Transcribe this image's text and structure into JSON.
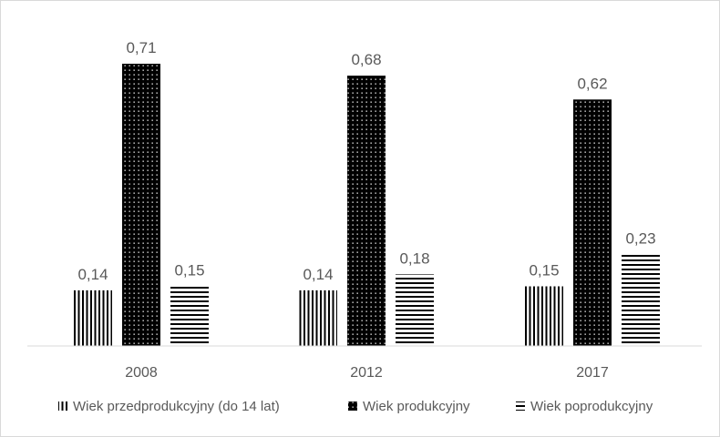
{
  "chart_data": {
    "type": "bar",
    "title": "",
    "xlabel": "",
    "ylabel": "",
    "categories": [
      "2008",
      "2012",
      "2017"
    ],
    "series": [
      {
        "name": "Wiek przedprodukcyjny (do 14 lat)",
        "pattern": "vertical-lines",
        "values": [
          0.14,
          0.14,
          0.15
        ],
        "labels": [
          "0,14",
          "0,14",
          "0,15"
        ]
      },
      {
        "name": "Wiek produkcyjny",
        "pattern": "dotted-black",
        "values": [
          0.71,
          0.68,
          0.62
        ],
        "labels": [
          "0,71",
          "0,68",
          "0,62"
        ]
      },
      {
        "name": "Wiek poprodukcyjny",
        "pattern": "horizontal-lines",
        "values": [
          0.15,
          0.18,
          0.23
        ],
        "labels": [
          "0,15",
          "0,18",
          "0,23"
        ]
      }
    ],
    "ylim": [
      0,
      0.8
    ],
    "grid": false,
    "legend": "bottom",
    "colors": {
      "bar": "#000000",
      "text": "#595959",
      "axis": "#d9d9d9"
    }
  }
}
